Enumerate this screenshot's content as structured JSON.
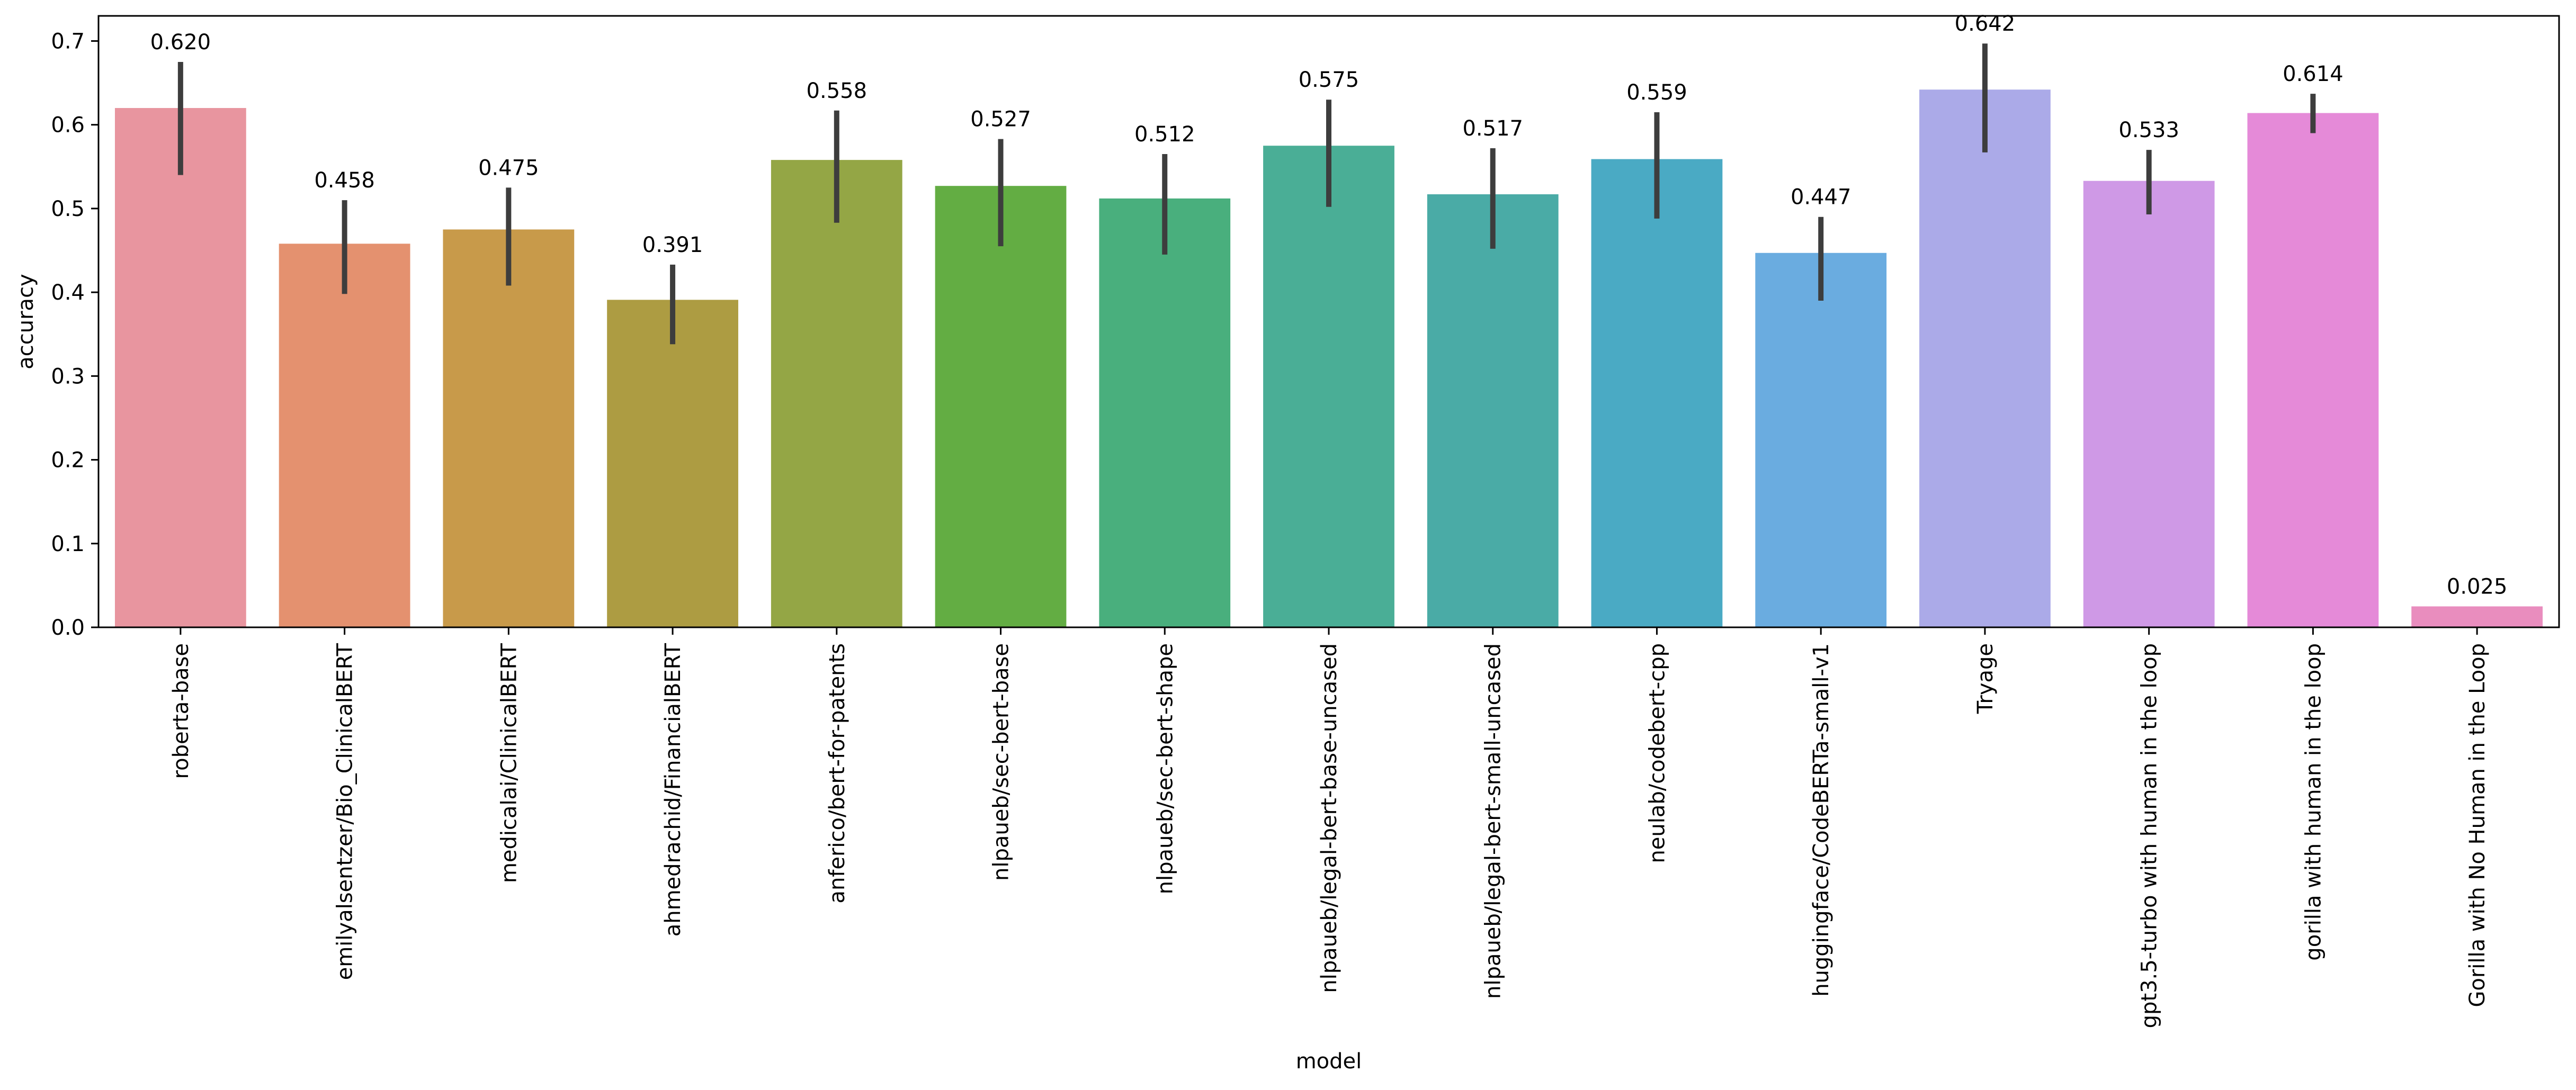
{
  "chart_data": {
    "type": "bar",
    "title": "",
    "xlabel": "model",
    "ylabel": "accuracy",
    "ylim": [
      0,
      0.73
    ],
    "yticks": [
      0.0,
      0.1,
      0.2,
      0.3,
      0.4,
      0.5,
      0.6,
      0.7
    ],
    "ytick_labels": [
      "0.0",
      "0.1",
      "0.2",
      "0.3",
      "0.4",
      "0.5",
      "0.6",
      "0.7"
    ],
    "grid": false,
    "legend": "none",
    "categories": [
      "roberta-base",
      "emilyalsentzer/Bio_ClinicalBERT",
      "medicalai/ClinicalBERT",
      "ahmedrachid/FinancialBERT",
      "anferico/bert-for-patents",
      "nlpaueb/sec-bert-base",
      "nlpaueb/sec-bert-shape",
      "nlpaueb/legal-bert-base-uncased",
      "nlpaueb/legal-bert-small-uncased",
      "neulab/codebert-cpp",
      "huggingface/CodeBERTa-small-v1",
      "Tryage",
      "gpt3.5-turbo with human in the loop",
      "gorilla with human in the loop",
      "Gorilla with No Human in the Loop"
    ],
    "values": [
      0.62,
      0.458,
      0.475,
      0.391,
      0.558,
      0.527,
      0.512,
      0.575,
      0.517,
      0.559,
      0.447,
      0.642,
      0.533,
      0.614,
      0.025
    ],
    "value_labels": [
      "0.620",
      "0.458",
      "0.475",
      "0.391",
      "0.558",
      "0.527",
      "0.512",
      "0.575",
      "0.517",
      "0.559",
      "0.447",
      "0.642",
      "0.533",
      "0.614",
      "0.025"
    ],
    "error_low": [
      0.54,
      0.398,
      0.408,
      0.338,
      0.483,
      0.455,
      0.445,
      0.502,
      0.452,
      0.488,
      0.39,
      0.567,
      0.493,
      0.59,
      0.025
    ],
    "error_high": [
      0.675,
      0.51,
      0.525,
      0.433,
      0.617,
      0.583,
      0.565,
      0.63,
      0.572,
      0.615,
      0.49,
      0.697,
      0.57,
      0.637,
      0.025
    ],
    "colors": [
      "#e8959f",
      "#e4916f",
      "#c89a4a",
      "#ad9c42",
      "#94a645",
      "#63ad43",
      "#49af7d",
      "#4aae96",
      "#4aaba6",
      "#4aaac4",
      "#6aace0",
      "#abaae8",
      "#cf99e6",
      "#e58ad8",
      "#e98dbe"
    ]
  }
}
